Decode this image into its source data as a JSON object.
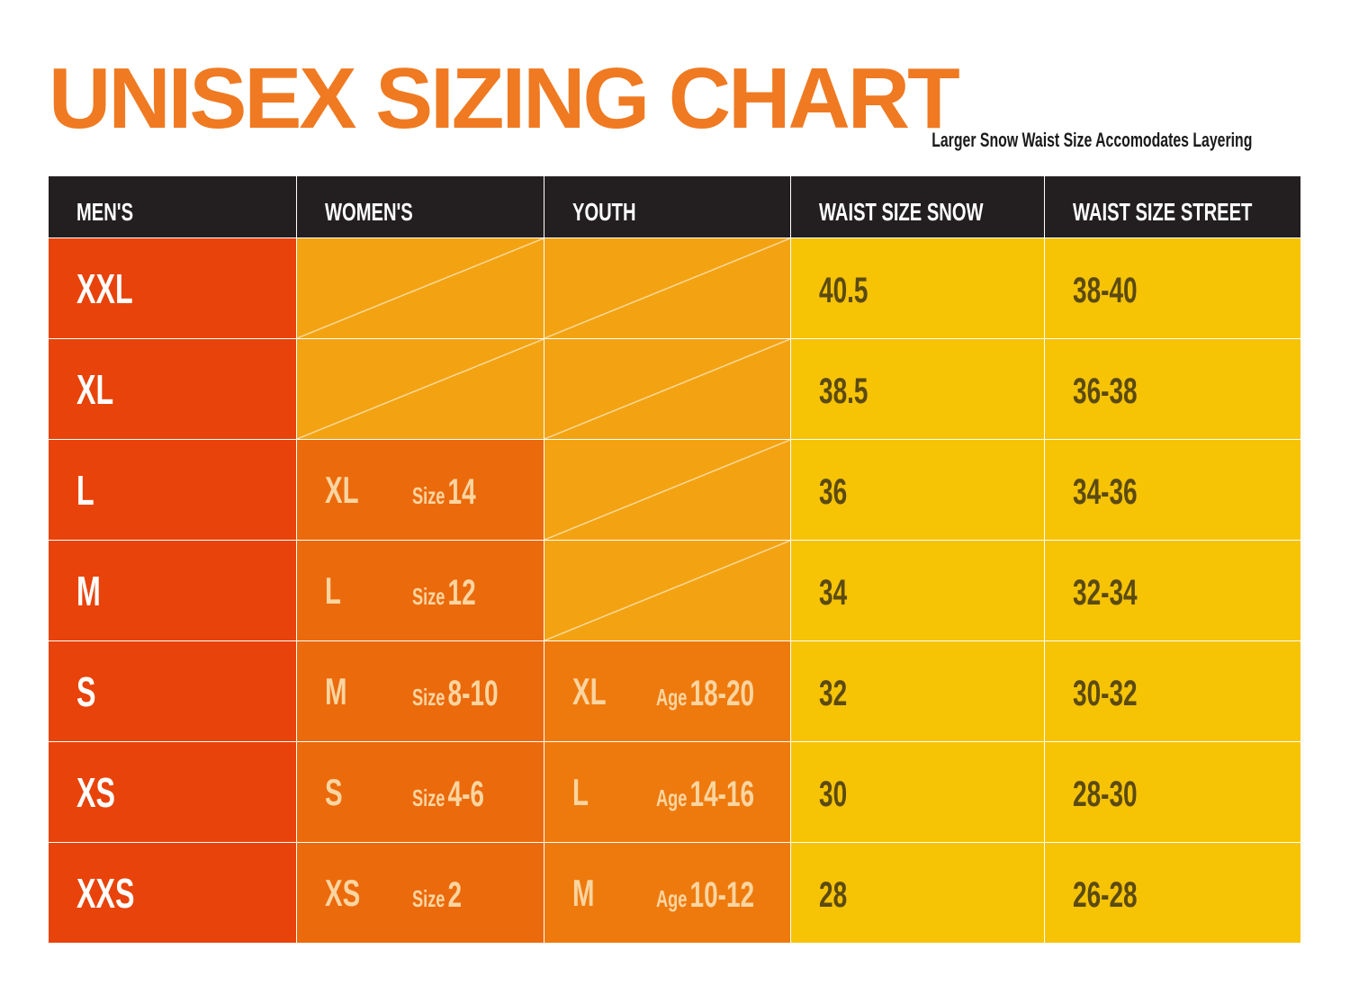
{
  "title": "UNISEX SIZING CHART",
  "subtitle": "Larger Snow Waist Size Accomodates Layering",
  "headers": {
    "mens": "MEN'S",
    "womens": "WOMEN'S",
    "youth": "YOUTH",
    "snow": "WAIST SIZE SNOW",
    "street": "WAIST SIZE STREET"
  },
  "rows": [
    {
      "mens": "XXL",
      "womens_size": "",
      "womens_prefix": "",
      "womens_num": "",
      "youth_size": "",
      "youth_prefix": "",
      "youth_num": "",
      "snow": "40.5",
      "street": "38-40"
    },
    {
      "mens": "XL",
      "womens_size": "",
      "womens_prefix": "",
      "womens_num": "",
      "youth_size": "",
      "youth_prefix": "",
      "youth_num": "",
      "snow": "38.5",
      "street": "36-38"
    },
    {
      "mens": "L",
      "womens_size": "XL",
      "womens_prefix": "Size",
      "womens_num": "14",
      "youth_size": "",
      "youth_prefix": "",
      "youth_num": "",
      "snow": "36",
      "street": "34-36"
    },
    {
      "mens": "M",
      "womens_size": "L",
      "womens_prefix": "Size",
      "womens_num": "12",
      "youth_size": "",
      "youth_prefix": "",
      "youth_num": "",
      "snow": "34",
      "street": "32-34"
    },
    {
      "mens": "S",
      "womens_size": "M",
      "womens_prefix": "Size",
      "womens_num": "8-10",
      "youth_size": "XL",
      "youth_prefix": "Age",
      "youth_num": "18-20",
      "snow": "32",
      "street": "30-32"
    },
    {
      "mens": "XS",
      "womens_size": "S",
      "womens_prefix": "Size",
      "womens_num": "4-6",
      "youth_size": "L",
      "youth_prefix": "Age",
      "youth_num": "14-16",
      "snow": "30",
      "street": "28-30"
    },
    {
      "mens": "XXS",
      "womens_size": "XS",
      "womens_prefix": "Size",
      "womens_num": "2",
      "youth_size": "M",
      "youth_prefix": "Age",
      "youth_num": "10-12",
      "snow": "28",
      "street": "26-28"
    }
  ],
  "colors": {
    "title": "#ef7a22",
    "header_bg": "#231f20",
    "mens_bg": "#e8430a",
    "womens_bg": "#eb6a0c",
    "youth_bg": "#ee7a0e",
    "empty_bg": "#f3a312",
    "snow_bg": "#f6c305",
    "street_bg": "#f6c305",
    "light_text": "#fbd5a0",
    "dark_text": "#5b4a12"
  }
}
